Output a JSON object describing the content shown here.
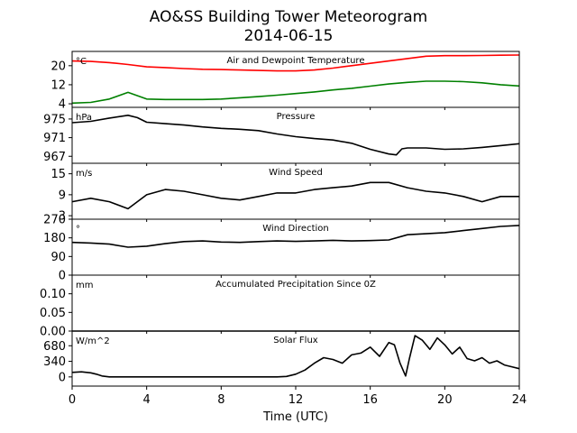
{
  "figure": {
    "title": "AO&SS Building Tower Meteorogram",
    "subtitle": "2014-06-15",
    "xlabel": "Time (UTC)"
  },
  "chart_data": [
    {
      "type": "line",
      "title": "Air and Dewpoint Temperature",
      "ylabel": "°C",
      "ylim": [
        2.5,
        26
      ],
      "yticks": [
        4,
        12,
        20
      ],
      "x": [
        0,
        1,
        2,
        3,
        4,
        5,
        6,
        7,
        8,
        9,
        10,
        11,
        12,
        13,
        14,
        15,
        16,
        17,
        18,
        19,
        20,
        21,
        22,
        23,
        24
      ],
      "series": [
        {
          "color": "#ff0000",
          "values": [
            22.0,
            21.8,
            21.3,
            20.5,
            19.5,
            19.2,
            18.8,
            18.5,
            18.4,
            18.2,
            18.0,
            17.8,
            17.8,
            18.2,
            19.0,
            20.0,
            21.0,
            22.0,
            23.0,
            24.0,
            24.2,
            24.2,
            24.3,
            24.4,
            24.5
          ]
        },
        {
          "color": "#008000",
          "values": [
            4.3,
            4.6,
            6.0,
            8.8,
            6.0,
            5.8,
            5.8,
            5.8,
            6.0,
            6.5,
            7.0,
            7.6,
            8.3,
            9.0,
            9.8,
            10.5,
            11.4,
            12.3,
            13.0,
            13.5,
            13.5,
            13.3,
            12.8,
            12.0,
            11.5
          ]
        }
      ]
    },
    {
      "type": "line",
      "title": "Pressure",
      "ylabel": "hPa",
      "ylim": [
        965.5,
        977.5
      ],
      "yticks": [
        967,
        971,
        975
      ],
      "x": [
        0,
        1,
        2,
        3,
        3.5,
        4,
        5,
        6,
        7,
        8,
        9,
        10,
        11,
        12,
        13,
        14,
        15,
        16,
        17,
        17.4,
        17.7,
        18,
        19,
        20,
        21,
        22,
        23,
        24
      ],
      "series": [
        {
          "color": "#000000",
          "values": [
            974.2,
            974.5,
            975.2,
            975.8,
            975.3,
            974.3,
            974.0,
            973.7,
            973.3,
            973.0,
            972.8,
            972.5,
            971.8,
            971.2,
            970.8,
            970.5,
            969.8,
            968.5,
            967.5,
            967.3,
            968.6,
            968.8,
            968.8,
            968.5,
            968.6,
            968.9,
            969.3,
            969.7
          ]
        }
      ]
    },
    {
      "type": "line",
      "title": "Wind Speed",
      "ylabel": "m/s",
      "ylim": [
        2,
        18
      ],
      "yticks": [
        3,
        9,
        15
      ],
      "x": [
        0,
        1,
        2,
        3,
        4,
        5,
        6,
        7,
        8,
        9,
        10,
        11,
        12,
        13,
        14,
        15,
        16,
        17,
        18,
        19,
        20,
        21,
        22,
        23,
        24
      ],
      "series": [
        {
          "color": "#000000",
          "values": [
            7.0,
            8.0,
            7.0,
            5.0,
            9.0,
            10.5,
            10.0,
            9.0,
            8.0,
            7.5,
            8.5,
            9.5,
            9.5,
            10.5,
            11.0,
            11.5,
            12.5,
            12.5,
            11.0,
            10.0,
            9.5,
            8.5,
            7.0,
            8.5,
            8.5
          ]
        }
      ]
    },
    {
      "type": "line",
      "title": "Wind Direction",
      "ylabel": "°",
      "ylim": [
        0,
        270
      ],
      "yticks": [
        0,
        90,
        180,
        270
      ],
      "x": [
        0,
        1,
        2,
        3,
        4,
        5,
        6,
        7,
        8,
        9,
        10,
        11,
        12,
        13,
        14,
        15,
        16,
        17,
        18,
        19,
        20,
        21,
        22,
        23,
        24
      ],
      "series": [
        {
          "color": "#000000",
          "values": [
            158,
            155,
            150,
            135,
            140,
            152,
            162,
            165,
            160,
            158,
            162,
            165,
            163,
            165,
            168,
            165,
            167,
            170,
            195,
            200,
            205,
            215,
            225,
            235,
            240
          ]
        }
      ]
    },
    {
      "type": "line",
      "title": "Accumulated Precipitation Since 0Z",
      "ylabel": "mm",
      "ylim": [
        0,
        0.15
      ],
      "yticks": [
        0.0,
        0.05,
        0.1
      ],
      "x": [
        0,
        24
      ],
      "series": [
        {
          "color": "#000000",
          "values": [
            0,
            0
          ]
        }
      ]
    },
    {
      "type": "line",
      "title": "Solar Flux",
      "ylabel": "W/m^2",
      "ylim": [
        -200,
        1000
      ],
      "yticks": [
        0,
        340,
        680
      ],
      "x": [
        0,
        0.5,
        1,
        1.3,
        1.6,
        2,
        4,
        6,
        8,
        10,
        11,
        11.5,
        12,
        12.5,
        13,
        13.5,
        14,
        14.5,
        15,
        15.5,
        16,
        16.5,
        17,
        17.3,
        17.6,
        17.9,
        18.1,
        18.4,
        18.8,
        19.2,
        19.6,
        20,
        20.4,
        20.8,
        21.2,
        21.6,
        22,
        22.4,
        22.8,
        23.2,
        23.6,
        24
      ],
      "series": [
        {
          "color": "#000000",
          "values": [
            100,
            110,
            90,
            60,
            20,
            0,
            0,
            0,
            0,
            0,
            0,
            10,
            60,
            150,
            300,
            420,
            380,
            300,
            480,
            520,
            650,
            450,
            750,
            700,
            300,
            20,
            400,
            900,
            800,
            600,
            850,
            700,
            500,
            650,
            400,
            350,
            420,
            300,
            350,
            260,
            220,
            180
          ]
        }
      ]
    }
  ],
  "xaxis": {
    "xlim": [
      0,
      24
    ],
    "ticks": [
      0,
      4,
      8,
      12,
      16,
      20,
      24
    ]
  }
}
